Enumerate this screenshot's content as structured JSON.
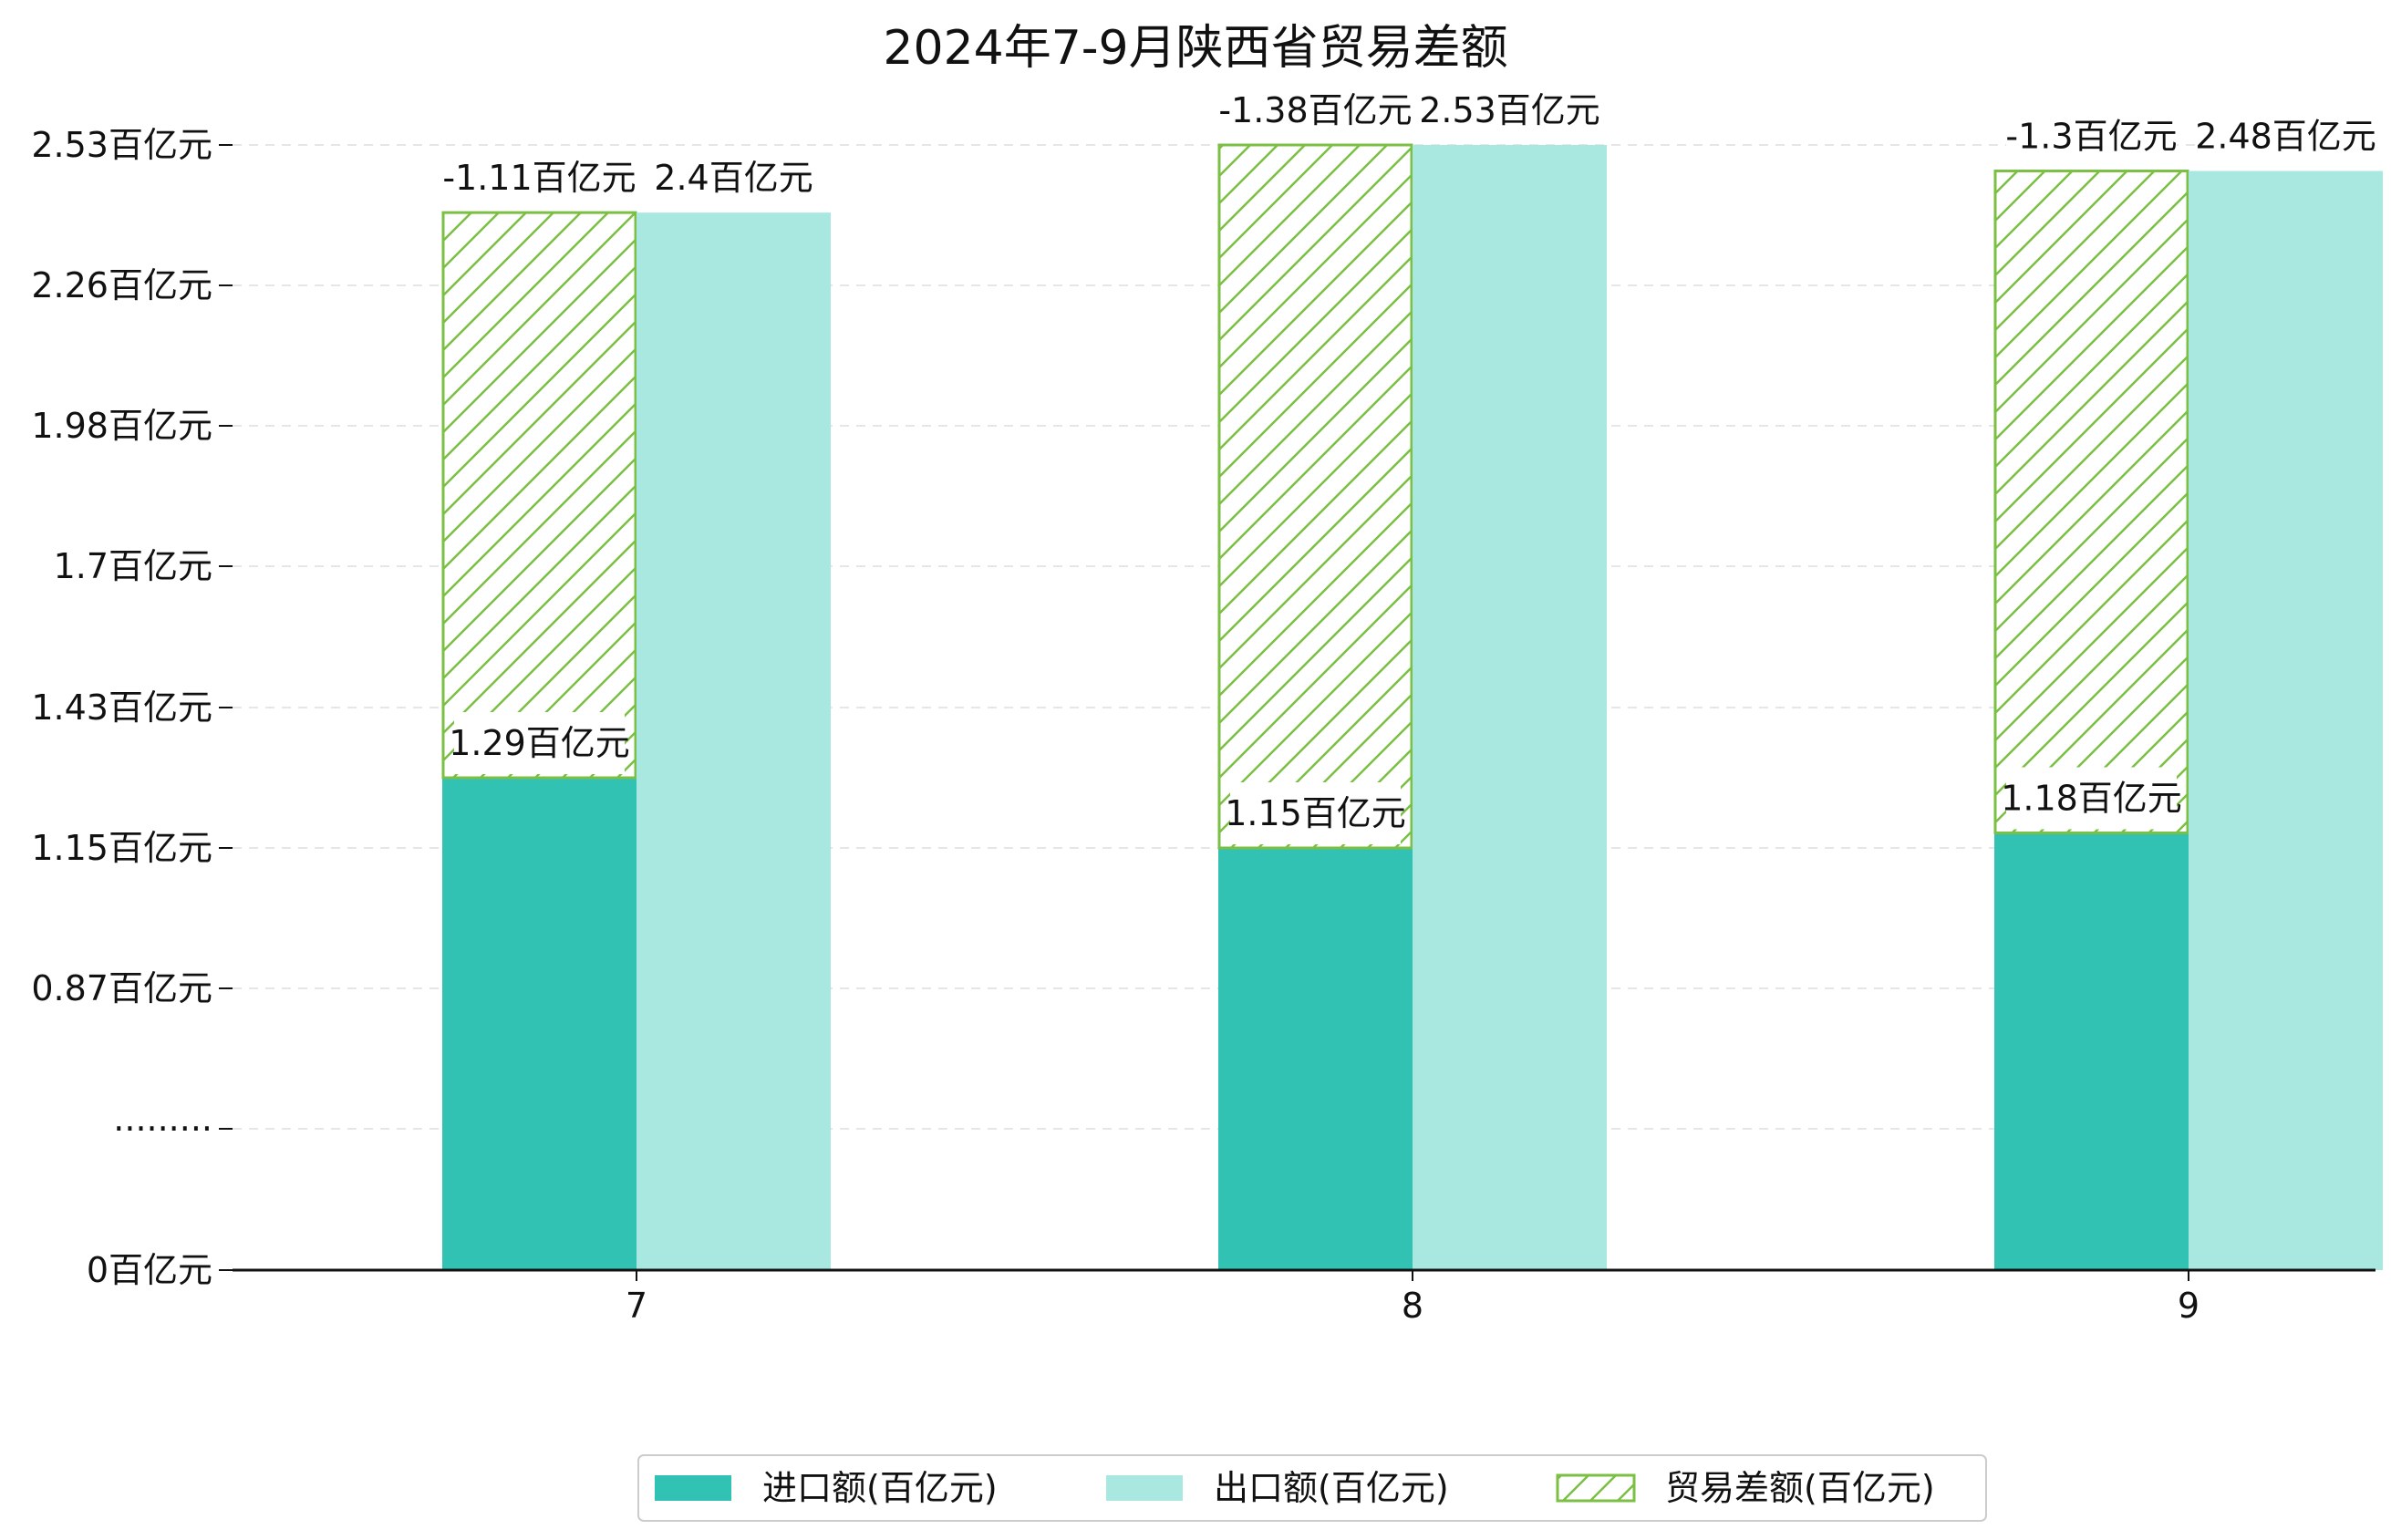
{
  "chart_data": {
    "type": "bar",
    "title": "2024年7-9月陕西省贸易差额",
    "xlabel": "",
    "ylabel": "",
    "categories": [
      "7",
      "8",
      "9"
    ],
    "series": [
      {
        "name": "进口额(百亿元)",
        "values": [
          1.29,
          1.15,
          1.18
        ],
        "labels": [
          "1.29百亿元",
          "1.15百亿元",
          "1.18百亿元"
        ],
        "color": "#31c2b3",
        "style": "solid"
      },
      {
        "name": "出口额(百亿元)",
        "values": [
          2.4,
          2.53,
          2.48
        ],
        "labels": [
          "2.4百亿元",
          "2.53百亿元",
          "2.48百亿元"
        ],
        "color": "#a8e8e1",
        "style": "solid"
      },
      {
        "name": "贸易差额(百亿元)",
        "values": [
          -1.11,
          -1.38,
          -1.3
        ],
        "labels": [
          "-1.11百亿元",
          "-1.38百亿元",
          "-1.3百亿元"
        ],
        "color": "#7bbf44",
        "style": "hatched",
        "stacked_on": "进口额(百亿元)"
      }
    ],
    "yticks": [
      "0百亿元",
      "·········",
      "0.87百亿元",
      "1.15百亿元",
      "1.43百亿元",
      "1.7百亿元",
      "1.98百亿元",
      "2.26百亿元",
      "2.53百亿元"
    ],
    "ytick_values": [
      0,
      null,
      0.87,
      1.15,
      1.43,
      1.7,
      1.98,
      2.26,
      2.53
    ],
    "axis_break": true,
    "grid": "horizontal dashed",
    "legend_position": "bottom-center"
  }
}
